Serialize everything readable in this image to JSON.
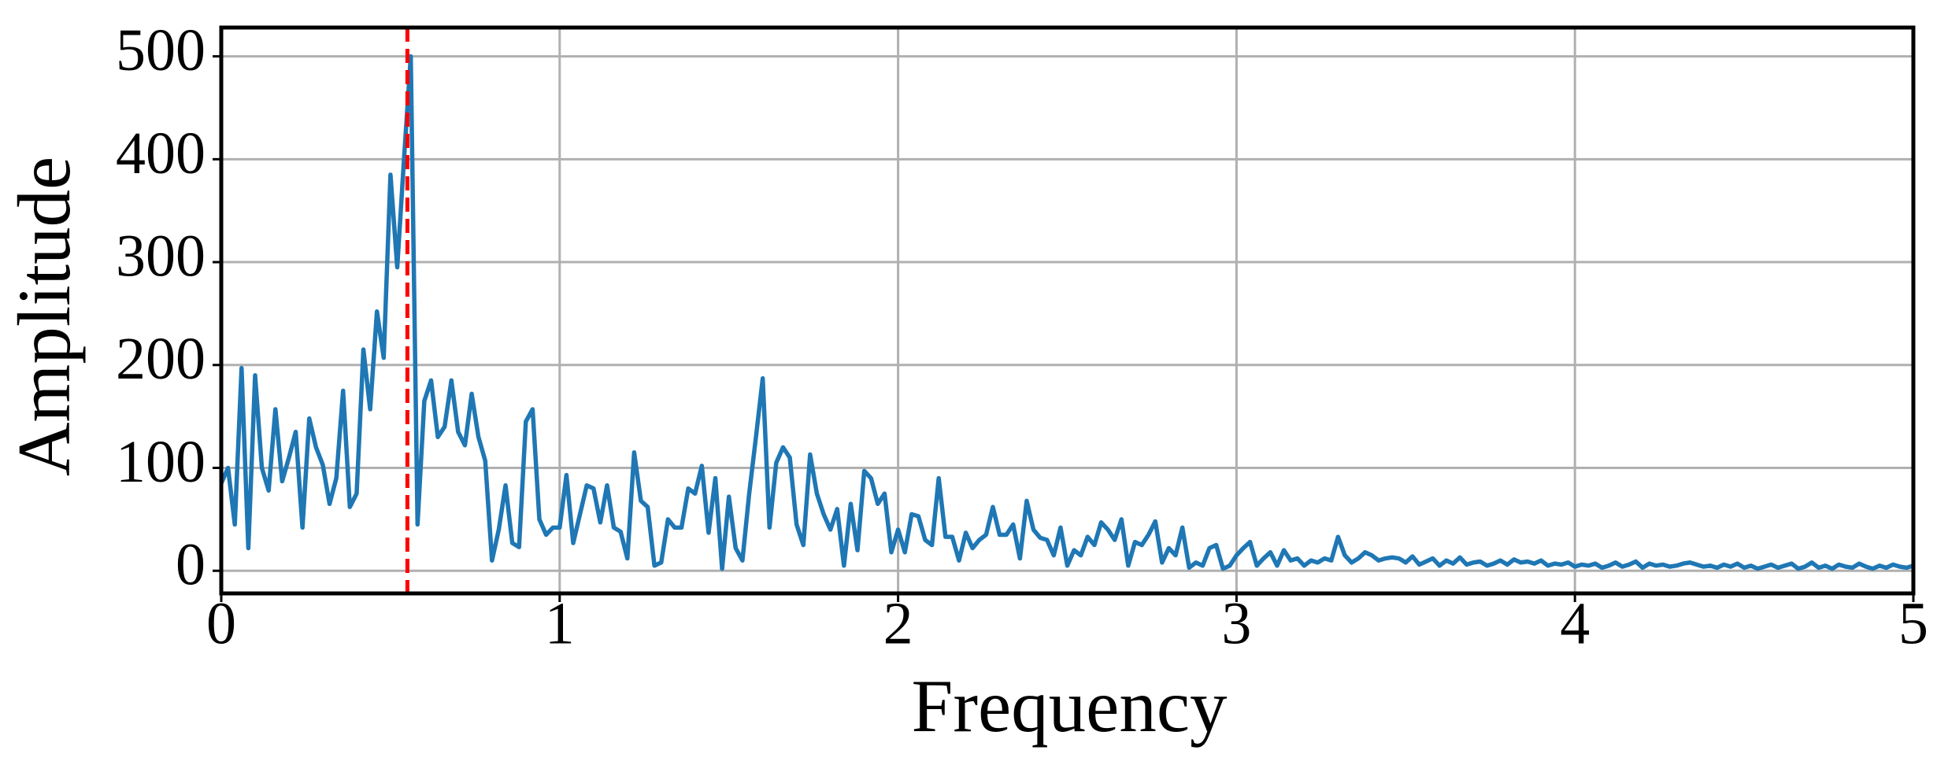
{
  "chart_data": {
    "type": "line",
    "xlabel": "Frequency",
    "ylabel": "Amplitude",
    "x": [
      0,
      0.02,
      0.04,
      0.06,
      0.08,
      0.1,
      0.12,
      0.14,
      0.16,
      0.18,
      0.2,
      0.22,
      0.24,
      0.26,
      0.28,
      0.3,
      0.32,
      0.34,
      0.36,
      0.38,
      0.4,
      0.42,
      0.44,
      0.46,
      0.48,
      0.5,
      0.52,
      0.54,
      0.56,
      0.58,
      0.6,
      0.62,
      0.64,
      0.66,
      0.68,
      0.7,
      0.72,
      0.74,
      0.76,
      0.78,
      0.8,
      0.82,
      0.84,
      0.86,
      0.88,
      0.9,
      0.92,
      0.94,
      0.96,
      0.98,
      1,
      1.02,
      1.04,
      1.06,
      1.08,
      1.1,
      1.12,
      1.14,
      1.16,
      1.18,
      1.2,
      1.22,
      1.24,
      1.26,
      1.28,
      1.3,
      1.32,
      1.34,
      1.36,
      1.38,
      1.4,
      1.42,
      1.44,
      1.46,
      1.48,
      1.5,
      1.52,
      1.54,
      1.56,
      1.58,
      1.6,
      1.62,
      1.64,
      1.66,
      1.68,
      1.7,
      1.72,
      1.74,
      1.76,
      1.78,
      1.8,
      1.82,
      1.84,
      1.86,
      1.88,
      1.9,
      1.92,
      1.94,
      1.96,
      1.98,
      2,
      2.02,
      2.04,
      2.06,
      2.08,
      2.1,
      2.12,
      2.14,
      2.16,
      2.18,
      2.2,
      2.22,
      2.24,
      2.26,
      2.28,
      2.3,
      2.32,
      2.34,
      2.36,
      2.38,
      2.4,
      2.42,
      2.44,
      2.46,
      2.48,
      2.5,
      2.52,
      2.54,
      2.56,
      2.58,
      2.6,
      2.62,
      2.64,
      2.66,
      2.68,
      2.7,
      2.72,
      2.74,
      2.76,
      2.78,
      2.8,
      2.82,
      2.84,
      2.86,
      2.88,
      2.9,
      2.92,
      2.94,
      2.96,
      2.98,
      3,
      3.02,
      3.04,
      3.06,
      3.08,
      3.1,
      3.12,
      3.14,
      3.16,
      3.18,
      3.2,
      3.22,
      3.24,
      3.26,
      3.28,
      3.3,
      3.32,
      3.34,
      3.36,
      3.38,
      3.4,
      3.42,
      3.44,
      3.46,
      3.48,
      3.5,
      3.52,
      3.54,
      3.56,
      3.58,
      3.6,
      3.62,
      3.64,
      3.66,
      3.68,
      3.7,
      3.72,
      3.74,
      3.76,
      3.78,
      3.8,
      3.82,
      3.84,
      3.86,
      3.88,
      3.9,
      3.92,
      3.94,
      3.96,
      3.98,
      4,
      4.02,
      4.04,
      4.06,
      4.08,
      4.1,
      4.12,
      4.14,
      4.16,
      4.18,
      4.2,
      4.22,
      4.24,
      4.26,
      4.28,
      4.3,
      4.32,
      4.34,
      4.36,
      4.38,
      4.4,
      4.42,
      4.44,
      4.46,
      4.48,
      4.5,
      4.52,
      4.54,
      4.56,
      4.58,
      4.6,
      4.62,
      4.64,
      4.66,
      4.68,
      4.7,
      4.72,
      4.74,
      4.76,
      4.78,
      4.8,
      4.82,
      4.84,
      4.86,
      4.88,
      4.9,
      4.92,
      4.94,
      4.96,
      4.98,
      5
    ],
    "series": [
      {
        "color": "#1f77b4",
        "values": [
          85,
          100,
          45,
          197,
          22,
          190,
          100,
          78,
          157,
          87,
          110,
          135,
          42,
          148,
          120,
          103,
          65,
          90,
          175,
          62,
          75,
          215,
          157,
          252,
          207,
          385,
          295,
          400,
          500,
          45,
          165,
          185,
          130,
          140,
          185,
          135,
          122,
          172,
          130,
          107,
          10,
          40,
          83,
          27,
          23,
          145,
          157,
          50,
          35,
          42,
          42,
          93,
          27,
          55,
          83,
          80,
          47,
          83,
          42,
          38,
          12,
          115,
          68,
          62,
          5,
          8,
          50,
          42,
          42,
          80,
          75,
          102,
          37,
          90,
          2,
          72,
          22,
          10,
          75,
          130,
          187,
          42,
          105,
          120,
          110,
          45,
          25,
          113,
          75,
          55,
          40,
          60,
          5,
          65,
          20,
          97,
          90,
          65,
          75,
          18,
          40,
          18,
          55,
          53,
          30,
          25,
          90,
          33,
          33,
          10,
          37,
          22,
          30,
          35,
          62,
          35,
          35,
          45,
          12,
          68,
          40,
          32,
          30,
          15,
          42,
          5,
          20,
          15,
          33,
          25,
          47,
          40,
          30,
          50,
          5,
          28,
          25,
          35,
          48,
          8,
          22,
          15,
          42,
          3,
          8,
          5,
          22,
          25,
          2,
          5,
          15,
          22,
          28,
          5,
          12,
          18,
          5,
          20,
          10,
          12,
          5,
          10,
          8,
          12,
          10,
          33,
          15,
          8,
          12,
          18,
          15,
          10,
          12,
          13,
          12,
          8,
          14,
          6,
          9,
          12,
          5,
          10,
          7,
          13,
          6,
          8,
          9,
          5,
          7,
          10,
          6,
          11,
          8,
          9,
          7,
          10,
          5,
          7,
          6,
          8,
          4,
          6,
          5,
          7,
          3,
          5,
          8,
          4,
          6,
          9,
          3,
          7,
          5,
          6,
          4,
          5,
          7,
          8,
          6,
          4,
          5,
          3,
          6,
          4,
          7,
          3,
          5,
          2,
          4,
          6,
          3,
          5,
          7,
          2,
          4,
          8,
          3,
          5,
          2,
          6,
          4,
          3,
          7,
          4,
          2,
          5,
          3,
          6,
          4,
          3,
          5
        ]
      }
    ],
    "vline": {
      "x": 0.55,
      "color": "#ff0000",
      "dashed": true
    },
    "xlim": [
      0,
      5
    ],
    "xticks": [
      0,
      1,
      2,
      3,
      4,
      5
    ],
    "ylim": [
      -22,
      528
    ],
    "yticks": [
      0,
      100,
      200,
      300,
      400,
      500
    ],
    "grid": true
  }
}
